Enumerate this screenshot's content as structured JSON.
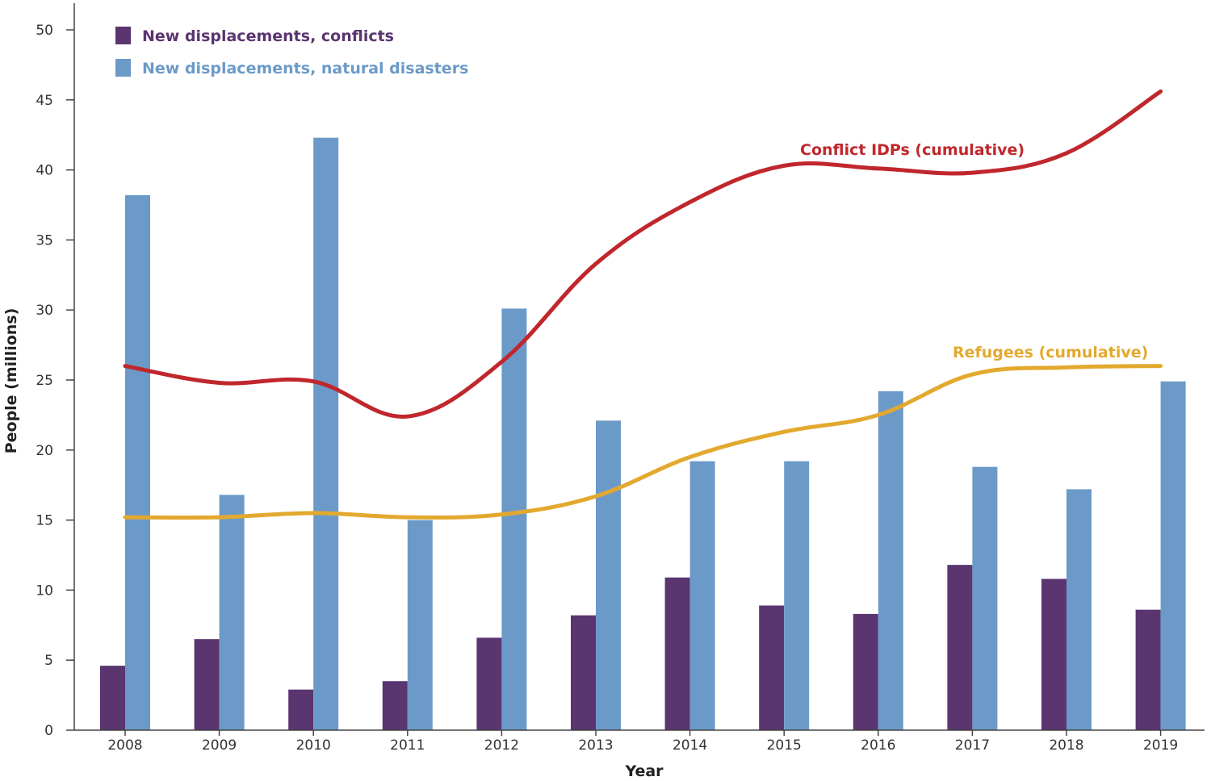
{
  "chart_data": {
    "type": "bar",
    "xlabel": "Year",
    "ylabel": "People (millions)",
    "ylim": [
      0,
      50
    ],
    "yticks": [
      0,
      5,
      10,
      15,
      20,
      25,
      30,
      35,
      40,
      45,
      50
    ],
    "categories": [
      "2008",
      "2009",
      "2010",
      "2011",
      "2012",
      "2013",
      "2014",
      "2015",
      "2016",
      "2017",
      "2018",
      "2019"
    ],
    "series": [
      {
        "name": "New displacements, conflicts",
        "type": "bar",
        "color": "#5a3570",
        "values": [
          4.6,
          6.5,
          2.9,
          3.5,
          6.6,
          8.2,
          10.9,
          8.9,
          8.3,
          11.8,
          10.8,
          8.6
        ]
      },
      {
        "name": "New displacements, natural disasters",
        "type": "bar",
        "color": "#6b9ac8",
        "values": [
          38.2,
          16.8,
          42.3,
          15.0,
          30.1,
          22.1,
          19.2,
          19.2,
          24.2,
          18.8,
          17.2,
          24.9
        ]
      },
      {
        "name": "Conflict IDPs (cumulative)",
        "type": "line",
        "color": "#c0272d",
        "values": [
          26.0,
          24.8,
          24.9,
          22.4,
          26.3,
          33.3,
          37.7,
          40.3,
          40.1,
          39.8,
          41.2,
          45.6
        ]
      },
      {
        "name": "Refugees (cumulative)",
        "type": "line",
        "color": "#e3a92e",
        "values": [
          15.2,
          15.2,
          15.5,
          15.2,
          15.4,
          16.7,
          19.5,
          21.3,
          22.5,
          25.4,
          25.9,
          26.0
        ]
      }
    ],
    "legend": {
      "placement": "top-left",
      "items": [
        {
          "label": "New displacements, conflicts",
          "color": "#5a3570"
        },
        {
          "label": "New displacements, natural disasters",
          "color": "#6b9ac8"
        }
      ]
    },
    "line_labels": [
      {
        "text": "Conflict IDPs (cumulative)",
        "color": "#c0272d"
      },
      {
        "text": "Refugees (cumulative)",
        "color": "#e3a92e"
      }
    ],
    "grid": false
  }
}
